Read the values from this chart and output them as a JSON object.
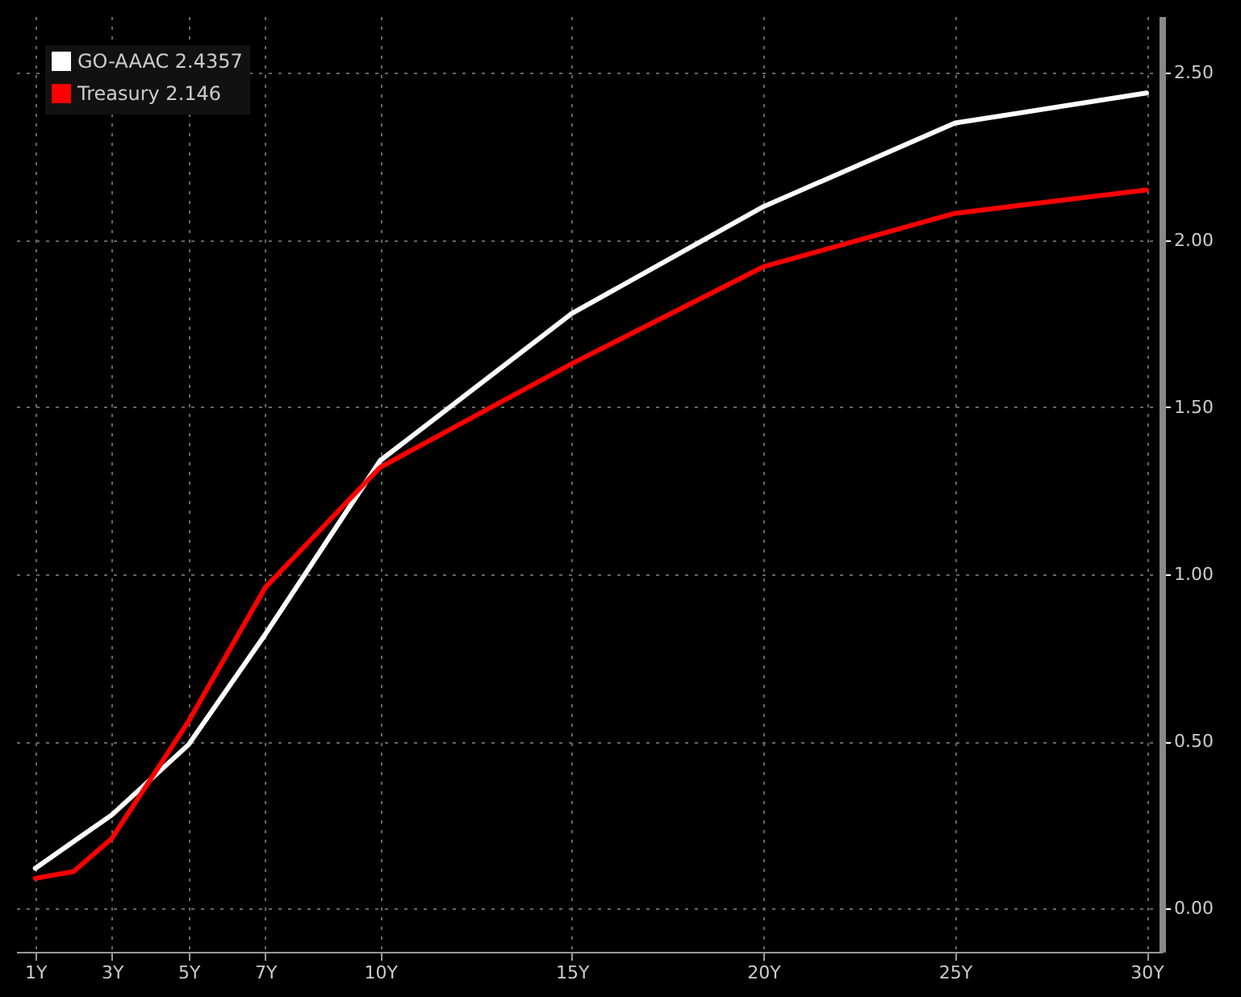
{
  "chart_data": {
    "type": "line",
    "x": [
      1,
      2,
      3,
      5,
      7,
      10,
      15,
      20,
      25,
      30
    ],
    "series": [
      {
        "name": "GO-AAAC 2.4357",
        "color": "#ffffff",
        "values": [
          0.12,
          0.2,
          0.28,
          0.49,
          0.82,
          1.34,
          1.78,
          2.1,
          2.35,
          2.44
        ]
      },
      {
        "name": "Treasury 2.146",
        "color": "#ff0000",
        "values": [
          0.09,
          0.11,
          0.21,
          0.56,
          0.96,
          1.32,
          1.63,
          1.92,
          2.08,
          2.15
        ]
      }
    ],
    "xlim": [
      0.5,
      30.4
    ],
    "xticks": [
      {
        "value": 1,
        "label": "1Y"
      },
      {
        "value": 3,
        "label": "3Y"
      },
      {
        "value": 5,
        "label": "5Y"
      },
      {
        "value": 7,
        "label": "7Y"
      },
      {
        "value": 10,
        "label": "10Y"
      },
      {
        "value": 15,
        "label": "15Y"
      },
      {
        "value": 20,
        "label": "20Y"
      },
      {
        "value": 25,
        "label": "25Y"
      },
      {
        "value": 30,
        "label": "30Y"
      }
    ],
    "ylim": [
      -0.13,
      2.67
    ],
    "yticks": [
      {
        "value": 0,
        "label": "0.00"
      },
      {
        "value": 0.5,
        "label": "0.50"
      },
      {
        "value": 1,
        "label": "1.00"
      },
      {
        "value": 1.5,
        "label": "1.50"
      },
      {
        "value": 2,
        "label": "2.00"
      },
      {
        "value": 2.5,
        "label": "2.50"
      }
    ],
    "grid": true,
    "legend": "top left",
    "marker": "none",
    "line_style": "solid"
  }
}
